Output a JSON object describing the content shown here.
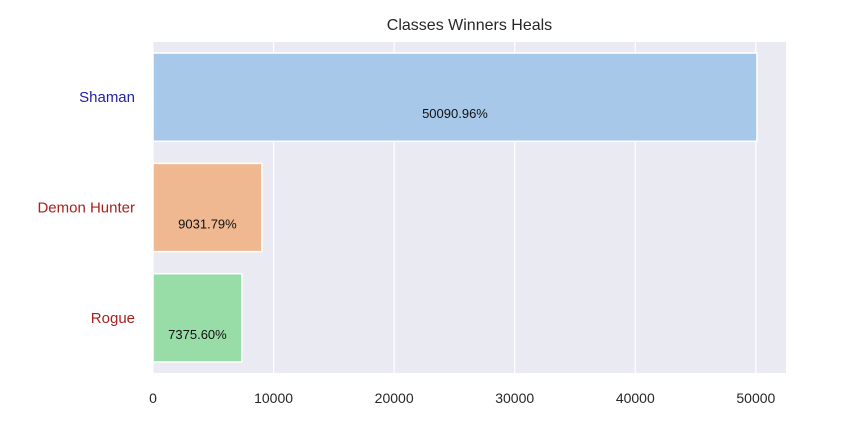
{
  "chart_data": {
    "type": "bar",
    "orientation": "horizontal",
    "title": "Classes Winners Heals",
    "xlabel": "",
    "ylabel": "",
    "categories": [
      "Shaman",
      "Demon Hunter",
      "Rogue"
    ],
    "values": [
      50090.96,
      9031.79,
      7375.6
    ],
    "data_labels": [
      "50090.96%",
      "9031.79%",
      "7375.60%"
    ],
    "bar_colors": [
      "#a8c8ea",
      "#f0b890",
      "#98dca8"
    ],
    "category_label_colors": [
      "#1f1fa8",
      "#a81f1f",
      "#a81f1f"
    ],
    "xlim": [
      0,
      52500
    ],
    "xticks": [
      0,
      10000,
      20000,
      30000,
      40000,
      50000
    ],
    "xtick_labels": [
      "0",
      "10000",
      "20000",
      "30000",
      "40000",
      "50000"
    ],
    "grid": true,
    "background_color": "#eaeaf2",
    "grid_color": "#ffffff"
  }
}
